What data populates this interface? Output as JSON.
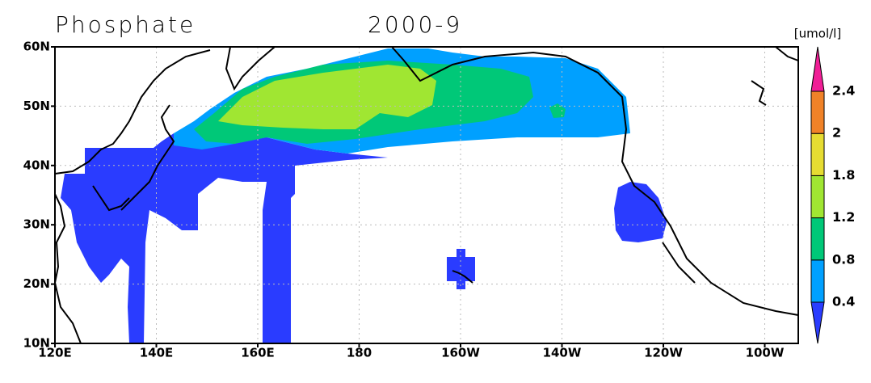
{
  "title": "Phosphate",
  "date": "2000-9",
  "units": "[umol/l]",
  "lat_labels": [
    "10N",
    "20N",
    "30N",
    "40N",
    "50N",
    "60N"
  ],
  "lon_labels": [
    "120E",
    "140E",
    "160E",
    "180",
    "160W",
    "140W",
    "120W",
    "100W"
  ],
  "colorbar": {
    "labels": [
      "0.4",
      "0.8",
      "1.2",
      "1.8",
      "2",
      "2.4"
    ],
    "colors": [
      "#2a3cff",
      "#00a0ff",
      "#00c878",
      "#a0e632",
      "#e6dc32",
      "#f08228",
      "#f01e96"
    ]
  }
}
